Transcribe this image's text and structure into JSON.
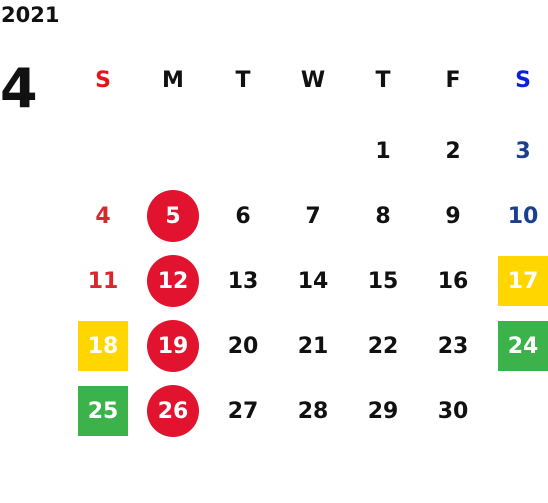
{
  "year": "2021",
  "month": "4",
  "weekdays": [
    "S",
    "M",
    "T",
    "W",
    "T",
    "F",
    "S"
  ],
  "weeks": [
    [
      null,
      null,
      null,
      null,
      1,
      2,
      3
    ],
    [
      4,
      5,
      6,
      7,
      8,
      9,
      10
    ],
    [
      11,
      12,
      13,
      14,
      15,
      16,
      17
    ],
    [
      18,
      19,
      20,
      21,
      22,
      23,
      24
    ],
    [
      25,
      26,
      27,
      28,
      29,
      30,
      null
    ]
  ]
}
